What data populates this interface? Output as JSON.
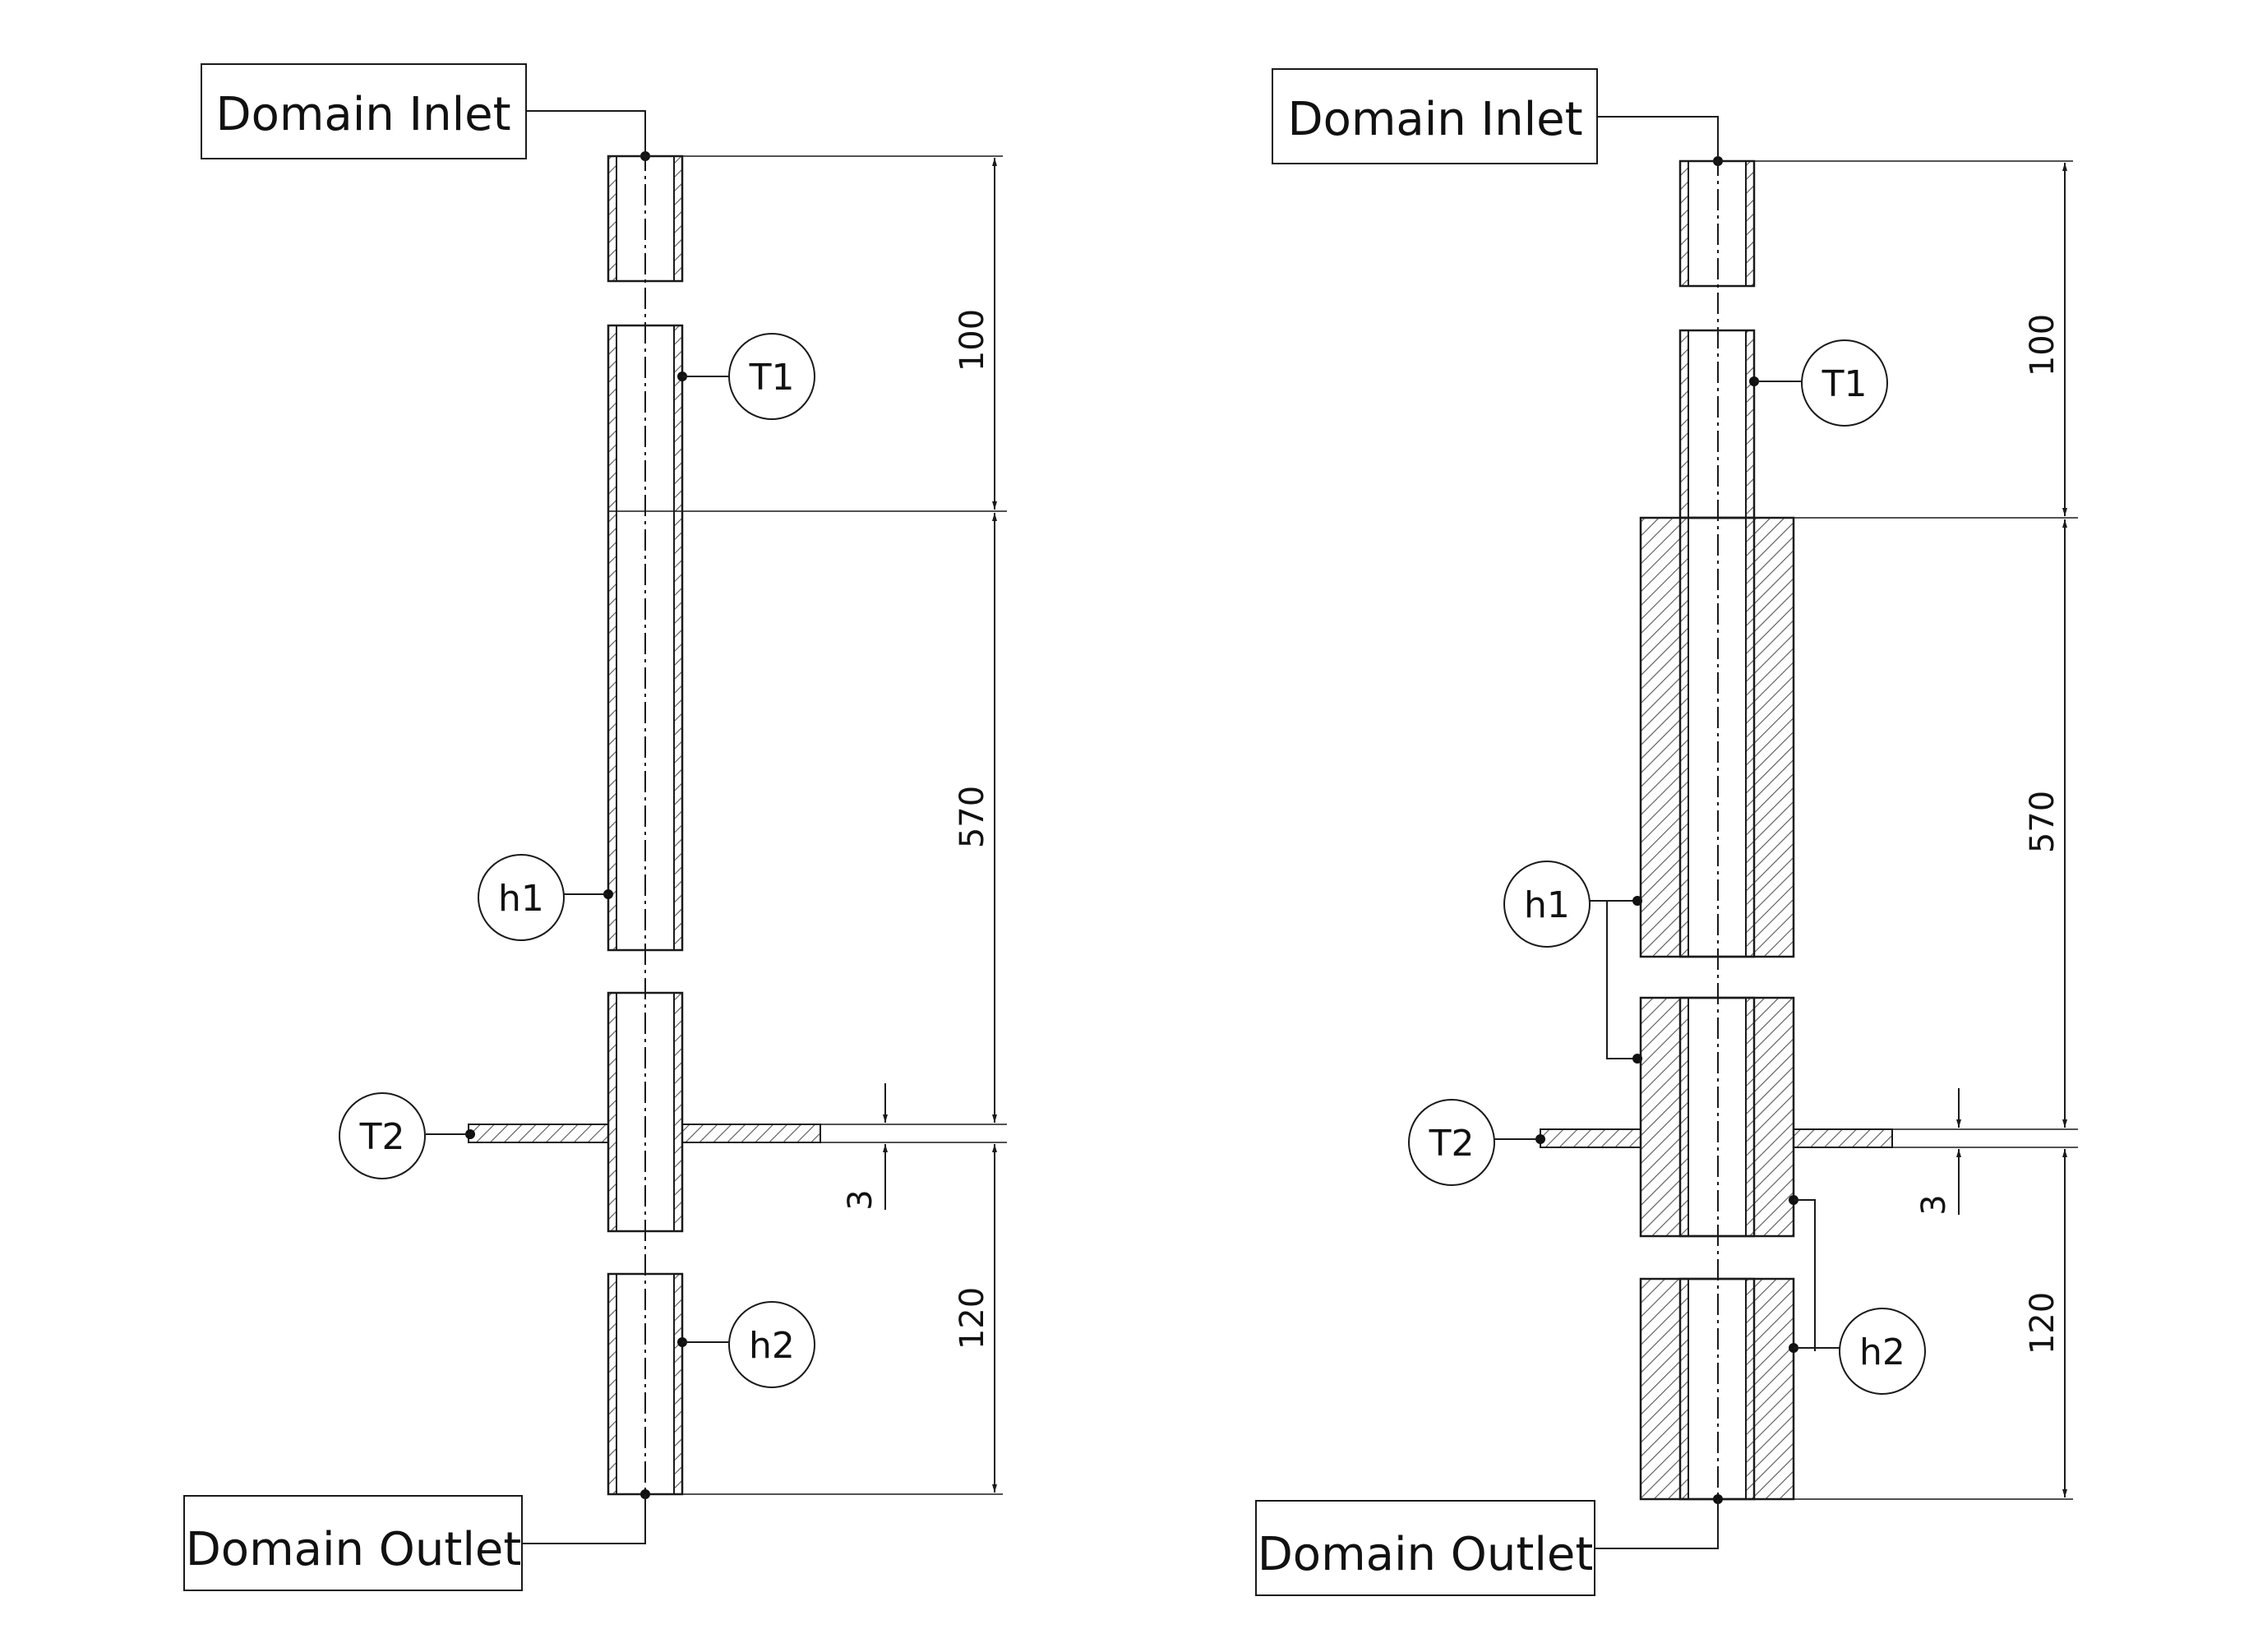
{
  "labels": {
    "inlet": "Domain Inlet",
    "outlet": "Domain Outlet"
  },
  "tags": {
    "T1": "T1",
    "T2": "T2",
    "h1": "h1",
    "h2": "h2"
  },
  "dimensions": {
    "inlet_section": "100",
    "test_section": "570",
    "lower_section": "120",
    "plate": "3"
  },
  "colors": {
    "ink": "#1a1a1a",
    "hatch": "#555555",
    "background": "#ffffff"
  }
}
